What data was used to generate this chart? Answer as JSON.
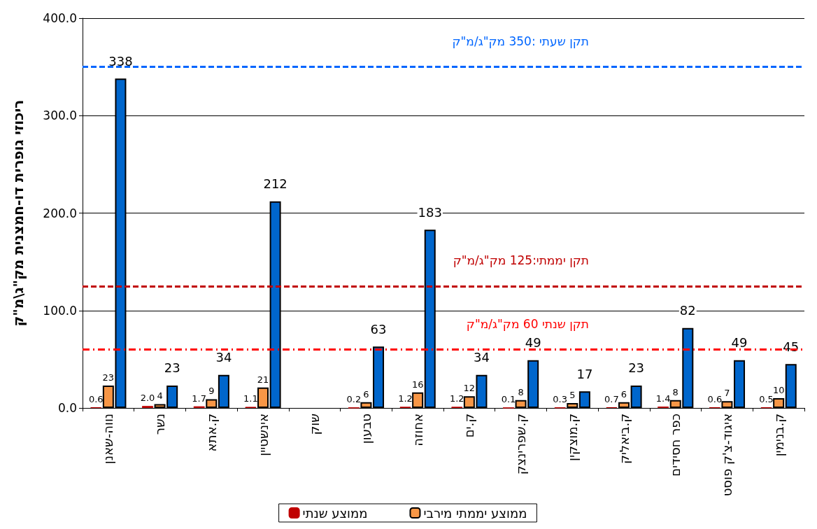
{
  "chart_data": {
    "type": "bar",
    "ylabel": "ריכוזי גופרית דו-חמצנית מק\"ג\\מ\"ק",
    "categories": [
      "נווה-שאנן",
      "נשר",
      "ק.אתא",
      "אינשטיין",
      "שוק",
      "טבעון",
      "אחוזה",
      "ק.ים",
      "ק.שפרינצק",
      "ק.מוצקין",
      "ק.ביאליק",
      "כפר חסידים",
      "איגוד-צ'ק פוסט",
      "ק.בנימין"
    ],
    "series": [
      {
        "name": "ממוצע שנתי",
        "color": "#c00000",
        "values": [
          0.6,
          2.0,
          1.7,
          1.1,
          null,
          0.2,
          1.2,
          1.2,
          0.1,
          0.3,
          0.7,
          1.4,
          0.6,
          0.5
        ],
        "value_labels": [
          "0.6",
          "2.0",
          "1.7",
          "1.1",
          null,
          "0.2",
          "1.2",
          "1.2",
          "0.1",
          "0.3",
          "0.7",
          "1.4",
          "0.6",
          "0.5"
        ]
      },
      {
        "name": "ממוצע יממתי מירבי",
        "color": "#f79646",
        "values": [
          23,
          4,
          9,
          21,
          null,
          6,
          16,
          12,
          8,
          5,
          6,
          8,
          7,
          10
        ],
        "value_labels": [
          "23",
          "4",
          "9",
          "21",
          null,
          "6",
          "16",
          "12",
          "8",
          "5",
          "6",
          "8",
          "7",
          "10"
        ]
      },
      {
        "color": "#0066cc",
        "values": [
          338,
          23,
          34,
          212,
          null,
          63,
          183,
          34,
          49,
          17,
          23,
          82,
          49,
          45
        ],
        "value_labels": [
          "338",
          "23",
          "34",
          "212",
          null,
          "63",
          "183",
          "34",
          "49",
          "17",
          "23",
          "82",
          "49",
          "45"
        ]
      }
    ],
    "ylim": [
      0,
      400
    ],
    "yticks": [
      {
        "value": 0,
        "label": "0.0"
      },
      {
        "value": 100,
        "label": "100.0"
      },
      {
        "value": 200,
        "label": "200.0"
      },
      {
        "value": 300,
        "label": "300.0"
      },
      {
        "value": 400,
        "label": "400.0"
      }
    ],
    "grid": "y",
    "legend": "bottom",
    "ref_lines": [
      {
        "axis": "y",
        "value": 350,
        "label": "תקן שעתי :350 מק\"ג/מ\"ק",
        "color": "#0066ff",
        "line_style": "dashed"
      },
      {
        "axis": "y",
        "value": 125,
        "label": "תקן יממתי:125 מק\"ג/מ\"ק",
        "color": "#c00000",
        "line_style": "dashed"
      },
      {
        "axis": "y",
        "value": 60,
        "label": "תקן שנתי 60 מק\"ג/מ\"ק",
        "color": "#ff0000",
        "line_style": "dotted"
      }
    ]
  }
}
